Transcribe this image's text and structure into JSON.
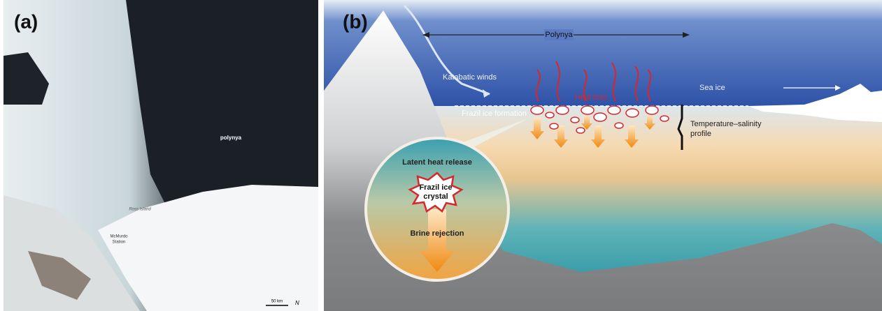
{
  "panel_a": {
    "label": "(a)",
    "polynya": "polynya",
    "island": "Ross Island",
    "station_lines": [
      "McMurdo",
      "Station"
    ],
    "scale": "50 km",
    "north": "N"
  },
  "panel_b": {
    "label": "(b)",
    "polynya": "Polynya",
    "winds": "Katabatic winds",
    "heat_loss": "Heat loss",
    "sea_ice": "Sea ice",
    "frazil_formation": "Frazil ice formation",
    "profile_lines": [
      "Temperature–salinity",
      "profile"
    ],
    "inset": {
      "latent": "Latent heat release",
      "crystal_lines": [
        "Frazil ice",
        "crystal"
      ],
      "brine": "Brine rejection"
    }
  }
}
